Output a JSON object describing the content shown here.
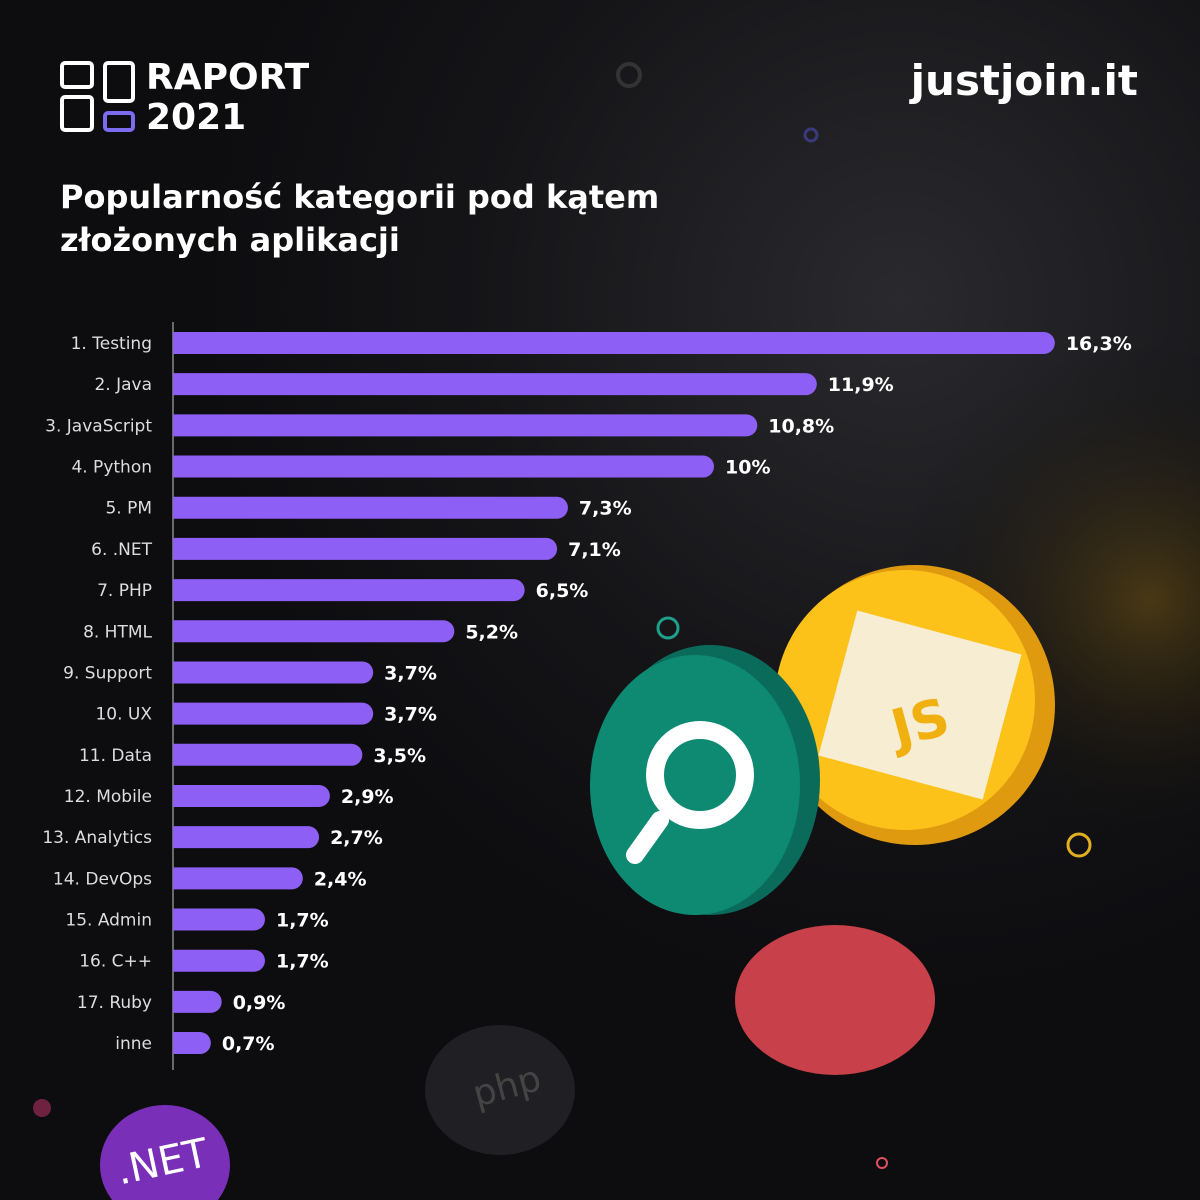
{
  "header": {
    "report": "RAPORT",
    "year": "2021",
    "brand": "justjoin.it"
  },
  "badges": {
    "net": ".NET",
    "js": "JS",
    "php": "php"
  },
  "chart_data": {
    "type": "bar",
    "orientation": "horizontal",
    "title": "Popularność kategorii pod kątem złożonych aplikacji",
    "categories": [
      "1. Testing",
      "2. Java",
      "3. JavaScript",
      "4. Python",
      "5. PM",
      "6. .NET",
      "7. PHP",
      "8. HTML",
      "9. Support",
      "10. UX",
      "11. Data",
      "12. Mobile",
      "13. Analytics",
      "14. DevOps",
      "15. Admin",
      "16. C++",
      "17. Ruby",
      "inne"
    ],
    "values": [
      16.3,
      11.9,
      10.8,
      10,
      7.3,
      7.1,
      6.5,
      5.2,
      3.7,
      3.7,
      3.5,
      2.9,
      2.7,
      2.4,
      1.7,
      1.7,
      0.9,
      0.7
    ],
    "value_labels": [
      "16,3%",
      "11,9%",
      "10,8%",
      "10%",
      "7,3%",
      "7,1%",
      "6,5%",
      "5,2%",
      "3,7%",
      "3,7%",
      "3,5%",
      "2,9%",
      "2,7%",
      "2,4%",
      "1,7%",
      "1,7%",
      "0,9%",
      "0,7%"
    ],
    "color": "#8d5ff5"
  }
}
